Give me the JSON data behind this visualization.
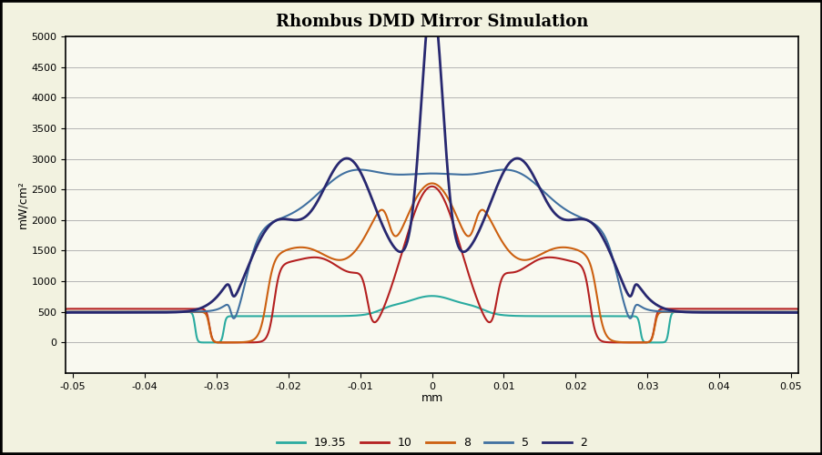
{
  "title": "Rhombus DMD Mirror Simulation",
  "xlabel": "mm",
  "ylabel": "mW/cm²",
  "xlim": [
    -0.051,
    0.051
  ],
  "ylim": [
    -500,
    5000
  ],
  "yticks": [
    0,
    500,
    1000,
    1500,
    2000,
    2500,
    3000,
    3500,
    4000,
    4500,
    5000
  ],
  "xticks": [
    -0.05,
    -0.04,
    -0.03,
    -0.02,
    -0.01,
    0,
    0.01,
    0.02,
    0.03,
    0.04,
    0.05
  ],
  "bg_color": "#f2f2e0",
  "plot_bg": "#f9f9f0",
  "series": [
    {
      "label": "19.35",
      "color": "#2aaba0",
      "linewidth": 1.5
    },
    {
      "label": "10",
      "color": "#b42020",
      "linewidth": 1.5
    },
    {
      "label": "8",
      "color": "#cc6010",
      "linewidth": 1.5
    },
    {
      "label": "5",
      "color": "#4070a0",
      "linewidth": 1.5
    },
    {
      "label": "2",
      "color": "#282870",
      "linewidth": 2.0
    }
  ]
}
